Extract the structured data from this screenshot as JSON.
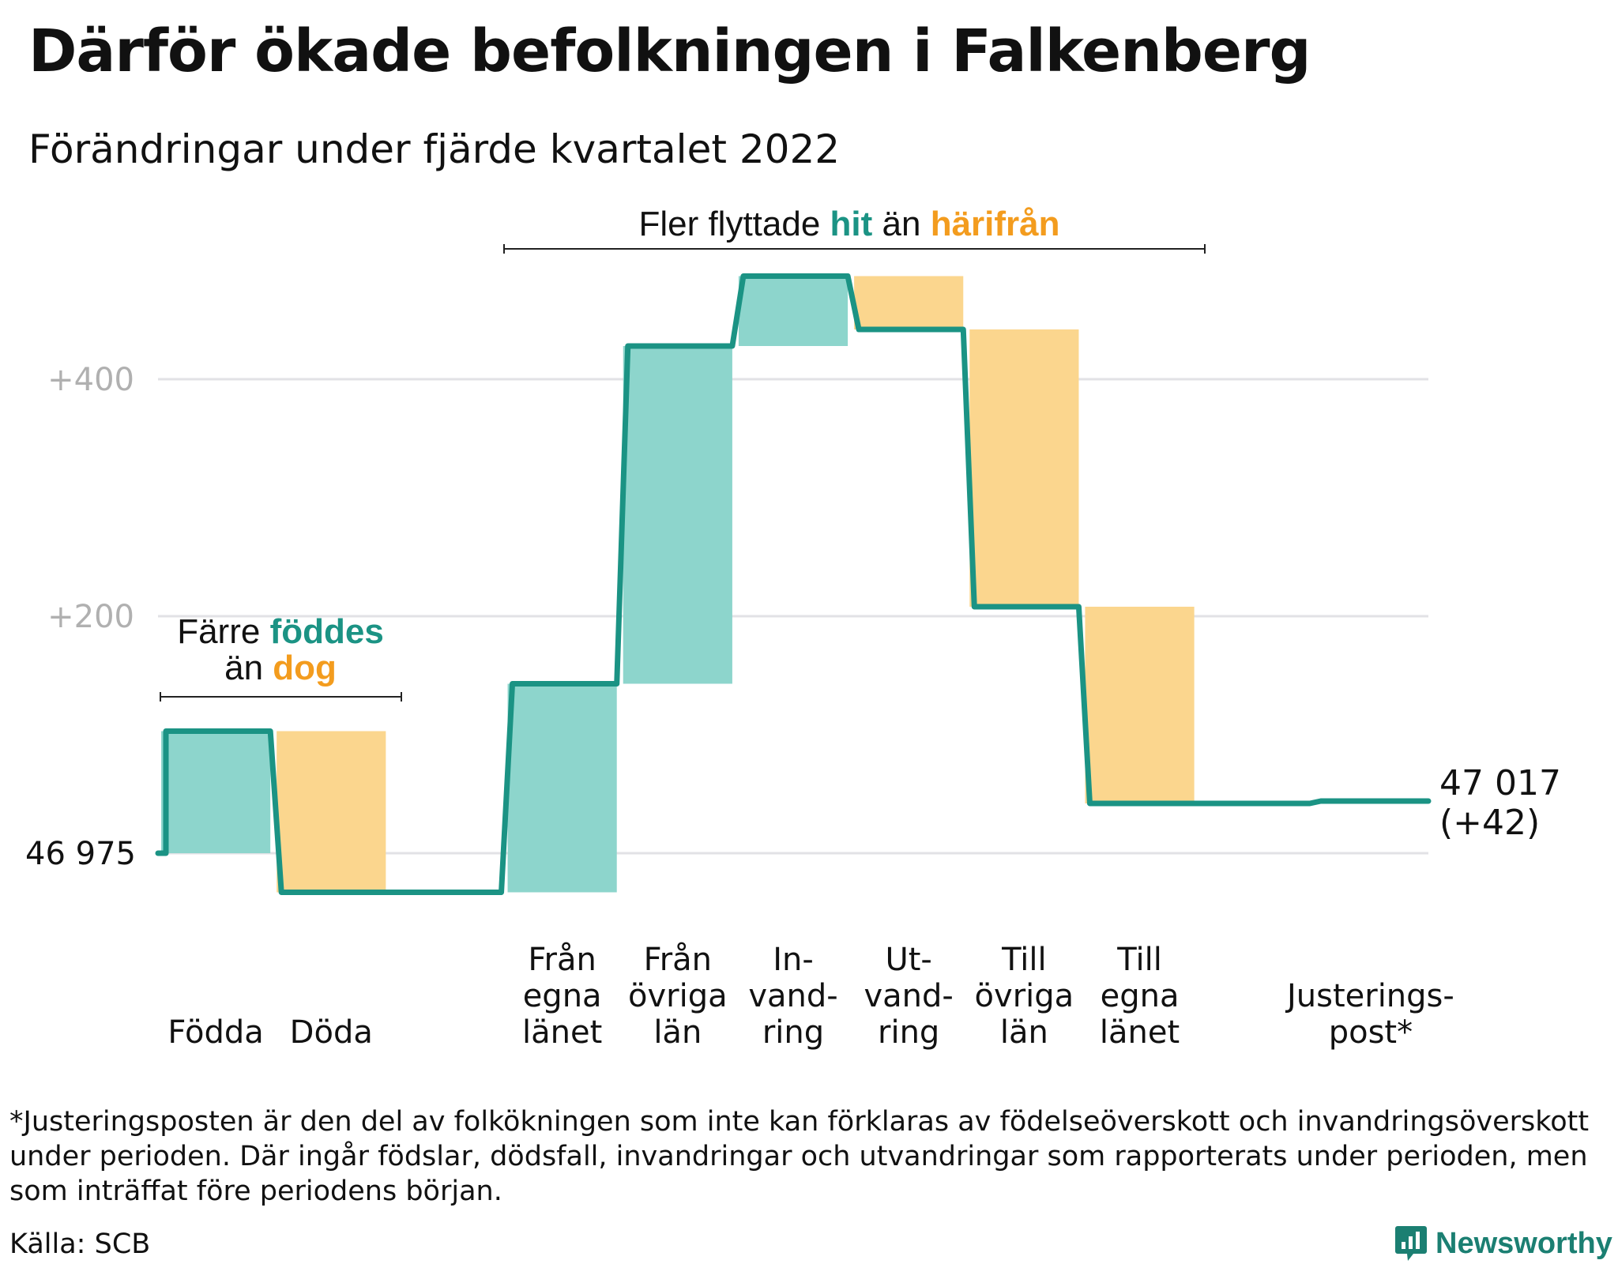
{
  "title": "Därför ökade befolkningen i Falkenberg",
  "subtitle": "Förändringar under fjärde kvartalet 2022",
  "annotations": {
    "migration": {
      "prefix": "Fler flyttade ",
      "hit": "hit",
      "middle": " än ",
      "harifran": "härifrån"
    },
    "births": {
      "line1_prefix": "Färre ",
      "foddes": "föddes",
      "line2_prefix": "än ",
      "dog": "dog"
    }
  },
  "colors": {
    "line": "#1b9384",
    "increase": "#8dd5cc",
    "decrease": "#fbd68e",
    "accent_hit": "#1b9384",
    "accent_away": "#f39c1e",
    "grid": "#e2e2e6",
    "tick": "#b0b0b0"
  },
  "chart_data": {
    "type": "waterfall",
    "start_label": "46 975",
    "start_value": 46975,
    "end_label_line1": "47 017",
    "end_label_line2": "(+42)",
    "end_value": 47017,
    "y_ticks": [
      {
        "value": 200,
        "label": "+200"
      },
      {
        "value": 400,
        "label": "+400"
      }
    ],
    "ylim": [
      -80,
      500
    ],
    "steps": [
      {
        "label_lines": [
          "Födda"
        ],
        "change": 103,
        "kind": "increase"
      },
      {
        "label_lines": [
          "Döda"
        ],
        "change": -136,
        "kind": "decrease"
      },
      {
        "label_lines": [],
        "change": 0,
        "kind": "gap"
      },
      {
        "label_lines": [
          "Från",
          "egna",
          "länet"
        ],
        "change": 176,
        "kind": "increase"
      },
      {
        "label_lines": [
          "Från",
          "övriga",
          "län"
        ],
        "change": 285,
        "kind": "increase"
      },
      {
        "label_lines": [
          "In-",
          "vand-",
          "ring"
        ],
        "change": 59,
        "kind": "increase"
      },
      {
        "label_lines": [
          "Ut-",
          "vand-",
          "ring"
        ],
        "change": -45,
        "kind": "decrease"
      },
      {
        "label_lines": [
          "Till",
          "övriga",
          "län"
        ],
        "change": -234,
        "kind": "decrease"
      },
      {
        "label_lines": [
          "Till",
          "egna",
          "länet"
        ],
        "change": -166,
        "kind": "decrease"
      },
      {
        "label_lines": [],
        "change": 0,
        "kind": "gap"
      },
      {
        "label_lines": [
          "Justerings-",
          "post*"
        ],
        "change": 2,
        "kind": "adjustment"
      }
    ]
  },
  "footnote": "*Justeringsposten är den del av folkökningen som inte kan förklaras av födelseöverskott och invandringsöverskott under perioden. Där ingår födslar, dödsfall, invandringar och utvandringar som rapporterats under perioden, men som inträffat före periodens början.",
  "source": "Källa: SCB",
  "brand": {
    "name": "Newsworthy",
    "icon": "newsworthy-chart-icon"
  }
}
